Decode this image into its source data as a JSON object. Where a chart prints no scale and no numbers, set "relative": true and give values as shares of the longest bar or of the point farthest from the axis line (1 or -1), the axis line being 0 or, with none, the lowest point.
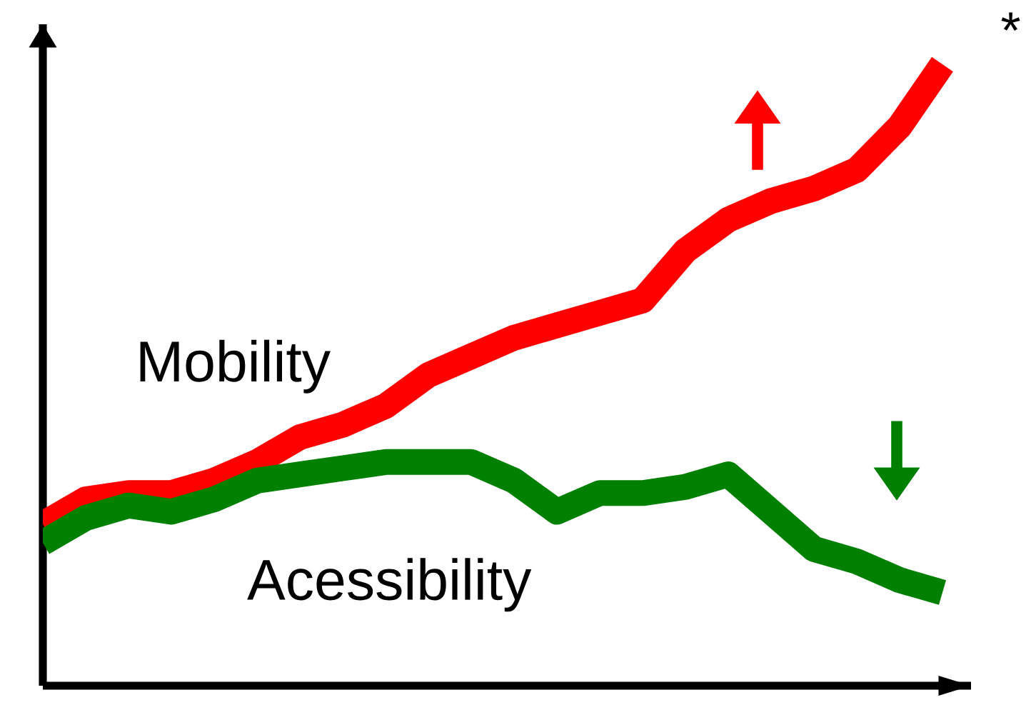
{
  "chart_data": {
    "type": "line",
    "relative": true,
    "categories": [
      null,
      null,
      null,
      null,
      null,
      null,
      null,
      null,
      null,
      null,
      null,
      null,
      null,
      null,
      null,
      null,
      null,
      null,
      null,
      null,
      null,
      null
    ],
    "series": [
      {
        "name": "Mobility",
        "color": "#ff0000",
        "values": [
          0.26,
          0.3,
          0.31,
          0.31,
          0.33,
          0.36,
          0.4,
          0.42,
          0.45,
          0.5,
          0.53,
          0.56,
          0.58,
          0.6,
          0.62,
          0.7,
          0.75,
          0.78,
          0.8,
          0.83,
          0.9,
          1.0
        ]
      },
      {
        "name": "Acessibility",
        "color": "#008000",
        "values": [
          0.23,
          0.27,
          0.29,
          0.28,
          0.3,
          0.33,
          0.34,
          0.35,
          0.36,
          0.36,
          0.36,
          0.33,
          0.28,
          0.31,
          0.31,
          0.32,
          0.34,
          0.28,
          0.22,
          0.2,
          0.17,
          0.15
        ]
      }
    ],
    "annotations": [
      "*"
    ]
  }
}
